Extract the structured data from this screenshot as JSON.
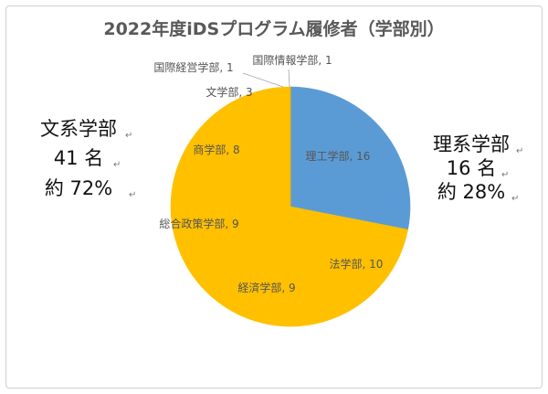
{
  "chart_data": {
    "type": "pie",
    "title": "2022年度iDSプログラム履修者（学部別）",
    "categories": [
      "理工学部",
      "法学部",
      "経済学部",
      "総合政策学部",
      "商学部",
      "文学部",
      "国際経営学部",
      "国際情報学部"
    ],
    "values": [
      16,
      10,
      9,
      9,
      8,
      3,
      1,
      1
    ],
    "slice_labels": [
      "理工学部, 16",
      "法学部, 10",
      "経済学部, 9",
      "総合政策学部, 9",
      "商学部, 8",
      "文学部, 3",
      "国際経営学部, 1",
      "国際情報学部, 1"
    ],
    "colors": [
      "#5B9BD5",
      "#FFC000",
      "#FFC000",
      "#FFC000",
      "#FFC000",
      "#FFC000",
      "#FFC000",
      "#FFC000"
    ],
    "legend": "none",
    "annotations": {
      "humanities": {
        "line1": "文系学部",
        "line2": "41 名",
        "line3": "約 72%"
      },
      "sciences": {
        "line1": "理系学部",
        "line2": "16 名",
        "line3": "約 28%"
      },
      "return_mark": "↵"
    }
  }
}
